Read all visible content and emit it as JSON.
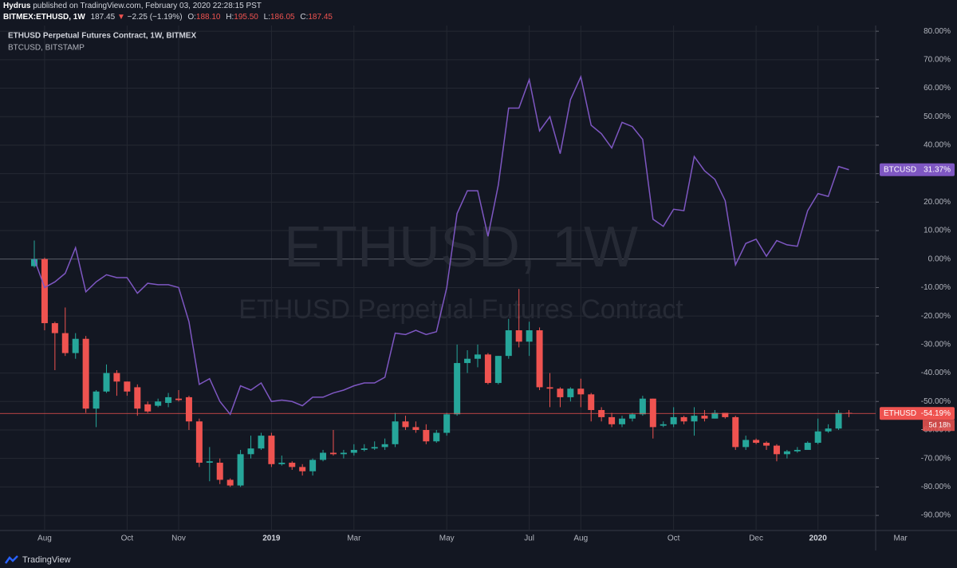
{
  "header": {
    "author": "Hydrus",
    "published": "published on TradingView.com, February 03, 2020 22:28:15 PST",
    "symbol": "BITMEX:ETHUSD, 1W",
    "last": "187.45",
    "arrow": "▼",
    "change": "−2.25 (−1.19%)",
    "ohlc": [
      {
        "key": "O:",
        "value": "188.10"
      },
      {
        "key": "H:",
        "value": "195.50"
      },
      {
        "key": "L:",
        "value": "186.05"
      },
      {
        "key": "C:",
        "value": "187.45"
      }
    ]
  },
  "chart_data": {
    "type": "candlestick",
    "legend": [
      "ETHUSD Perpetual Futures Contract, 1W, BITMEX",
      "BTCUSD, BITSTAMP"
    ],
    "watermark": [
      "ETHUSD, 1W",
      "ETHUSD Perpetual Futures Contract"
    ],
    "grid": true,
    "ylim": [
      -95.3,
      82
    ],
    "yticks": [
      {
        "value": 80,
        "label": "80.00%"
      },
      {
        "value": 70,
        "label": "70.00%"
      },
      {
        "value": 60,
        "label": "60.00%"
      },
      {
        "value": 50,
        "label": "50.00%"
      },
      {
        "value": 40,
        "label": "40.00%"
      },
      {
        "value": 30,
        "label": "30.00%"
      },
      {
        "value": 20,
        "label": "20.00%"
      },
      {
        "value": 10,
        "label": "10.00%"
      },
      {
        "value": 0,
        "label": "0.00%"
      },
      {
        "value": -10,
        "label": "-10.00%"
      },
      {
        "value": -20,
        "label": "-20.00%"
      },
      {
        "value": -30,
        "label": "-30.00%"
      },
      {
        "value": -40,
        "label": "-40.00%"
      },
      {
        "value": -50,
        "label": "-50.00%"
      },
      {
        "value": -60,
        "label": "-60.00%"
      },
      {
        "value": -70,
        "label": "-70.00%"
      },
      {
        "value": -80,
        "label": "-80.00%"
      },
      {
        "value": -90,
        "label": "-90.00%"
      }
    ],
    "categories": [
      null,
      "Aug",
      null,
      null,
      null,
      null,
      null,
      null,
      null,
      "Oct",
      null,
      null,
      null,
      null,
      "Nov",
      null,
      null,
      null,
      null,
      null,
      null,
      null,
      null,
      "2019",
      null,
      null,
      null,
      null,
      null,
      null,
      null,
      "Mar",
      null,
      null,
      null,
      null,
      null,
      null,
      null,
      null,
      "May",
      null,
      null,
      null,
      null,
      null,
      null,
      null,
      "Jul",
      null,
      null,
      null,
      null,
      "Aug",
      null,
      null,
      null,
      null,
      null,
      null,
      null,
      null,
      "Oct",
      null,
      null,
      null,
      null,
      null,
      null,
      null,
      "Dec",
      null,
      null,
      null,
      null,
      null,
      "2020",
      null,
      null,
      null,
      null,
      null,
      null,
      null,
      "Mar"
    ],
    "series": [
      {
        "name": "ETHUSD",
        "type": "candlestick",
        "up_color": "#26a69a",
        "down_color": "#ef5350",
        "countdown": "5d 18h",
        "open": [
          -2.5,
          0,
          -22.5,
          -26,
          -33,
          -28,
          -52.5,
          -46.5,
          -40,
          -43,
          -45,
          -51,
          -51.5,
          -50.5,
          -49,
          -48.5,
          -57,
          -71.5,
          -71.5,
          -77.5,
          -79.5,
          -68.5,
          -66.5,
          -62,
          -72,
          -71.5,
          -73,
          -74.5,
          -70.5,
          -68,
          -68.5,
          -68,
          -67,
          -66.5,
          -66,
          -65,
          -57,
          -59,
          -60,
          -64,
          -61,
          -54.5,
          -36.5,
          -35,
          -33.5,
          -43.5,
          -34,
          -25,
          -29,
          -25,
          -45,
          -45.5,
          -48.5,
          -45.5,
          -47.5,
          -53,
          -55.5,
          -58,
          -56,
          -54.5,
          -49,
          -58.5,
          -58,
          -55.5,
          -57,
          -55,
          -56,
          -54,
          -55.5,
          -66,
          -63.5,
          -64.5,
          -65.5,
          -68.5,
          -67.5,
          -67,
          -64.5,
          -60.5,
          -59.5,
          -54,
          null,
          null,
          null,
          null,
          null
        ],
        "high": [
          6.5,
          0.5,
          -22,
          -17,
          -26,
          -27,
          -46,
          -37,
          -39,
          -43,
          -44,
          -50,
          -49,
          -47,
          -46,
          -48,
          -56,
          -66,
          -70,
          -77,
          -67,
          -62,
          -61,
          -61,
          -69,
          -71,
          -72,
          -70,
          -67,
          -60,
          -67,
          -65,
          -65,
          -64,
          -63,
          -54,
          -55,
          -57,
          -58,
          -60,
          -54,
          -30,
          -32,
          -30,
          -33,
          -34,
          -21,
          -10.5,
          -22,
          -24,
          -40,
          -45,
          -45,
          -42,
          -47,
          -52,
          -54,
          -55,
          -54,
          -48,
          -49,
          -57,
          -52,
          -55,
          -52,
          -53,
          -53,
          -54,
          -55,
          -62,
          -63,
          -64,
          -65,
          -67,
          -66,
          -64,
          -56,
          -58,
          -53,
          -53,
          null,
          null,
          null,
          null,
          null
        ],
        "low": [
          -3,
          -25,
          -39,
          -34,
          -35,
          -54,
          -59,
          -47,
          -48,
          -48,
          -55,
          -54,
          -52,
          -52,
          -50,
          -60,
          -73,
          -78,
          -79,
          -80,
          -80,
          -70,
          -67,
          -73,
          -72.5,
          -74,
          -76,
          -76,
          -71,
          -69,
          -70,
          -69,
          -67.5,
          -67,
          -67,
          -66,
          -60,
          -61,
          -65,
          -64.5,
          -62,
          -55,
          -40,
          -38,
          -44,
          -44,
          -35,
          -31,
          -34,
          -46,
          -52,
          -52,
          -50,
          -52,
          -57,
          -57,
          -59,
          -59,
          -57,
          -55,
          -63,
          -59,
          -59,
          -58,
          -62,
          -57,
          -56,
          -56,
          -67,
          -67,
          -65,
          -67,
          -71,
          -70,
          -68,
          -66,
          -65,
          -61,
          -60,
          -55.5,
          null,
          null,
          null,
          null,
          null
        ],
        "close": [
          0,
          -22.5,
          -26,
          -33,
          -28,
          -52.5,
          -46.5,
          -40,
          -43,
          -46.5,
          -52.5,
          -53.5,
          -50,
          -48.5,
          -49.5,
          -57,
          -71.5,
          -71,
          -77.5,
          -79.5,
          -68.5,
          -66.5,
          -62,
          -72,
          -71.5,
          -73,
          -74.5,
          -70.5,
          -68,
          -68.5,
          -68,
          -67,
          -66.5,
          -66,
          -65,
          -57,
          -59,
          -60,
          -64,
          -61,
          -54.5,
          -36.5,
          -35,
          -33.5,
          -43.5,
          -34,
          -25,
          -29,
          -25,
          -45,
          -45.5,
          -48.5,
          -45.5,
          -47.5,
          -53,
          -55.5,
          -58,
          -56,
          -54.5,
          -49,
          -59,
          -58,
          -55.5,
          -57,
          -55,
          -56,
          -54,
          -55.5,
          -66,
          -63.5,
          -64.5,
          -65.5,
          -68.5,
          -67.5,
          -67,
          -64.5,
          -60.5,
          -59.5,
          -54,
          -54.19,
          null,
          null,
          null,
          null,
          null
        ],
        "value_labels": [
          null,
          null,
          null,
          null,
          null,
          null,
          null,
          null,
          null,
          null,
          null,
          null,
          null,
          null,
          null,
          null,
          null,
          null,
          null,
          null,
          null,
          null,
          null,
          null,
          null,
          null,
          null,
          null,
          null,
          null,
          null,
          null,
          null,
          null,
          null,
          null,
          null,
          null,
          null,
          null,
          null,
          null,
          null,
          null,
          null,
          null,
          null,
          null,
          null,
          null,
          null,
          null,
          null,
          null,
          null,
          null,
          null,
          null,
          null,
          null,
          null,
          null,
          null,
          null,
          null,
          null,
          null,
          null,
          null,
          null,
          null,
          null,
          null,
          null,
          null,
          null,
          null,
          null,
          null,
          "-54.19%",
          null,
          null,
          null,
          null,
          null
        ]
      },
      {
        "name": "BTCUSD",
        "type": "line",
        "color": "#7e57c2",
        "values": [
          0,
          -10,
          -8,
          -5,
          4,
          -11.5,
          -8,
          -5.5,
          -6.5,
          -6.5,
          -12,
          -8.5,
          -9,
          -9,
          -10,
          -22,
          -44,
          -42,
          -50,
          -54.5,
          -44.5,
          -46,
          -43.5,
          -50,
          -49.5,
          -50,
          -51.5,
          -48.5,
          -48.5,
          -47,
          -46,
          -44.5,
          -43.5,
          -43.5,
          -41.5,
          -26,
          -26.5,
          -25,
          -26.5,
          -25.5,
          -10,
          16,
          24,
          24,
          8,
          26,
          53,
          53,
          63,
          45,
          50,
          37,
          56,
          64,
          47,
          44,
          39,
          48,
          46.5,
          42,
          14,
          11.5,
          17.5,
          17,
          36,
          31,
          28,
          20.5,
          -2,
          5.5,
          7,
          1,
          6.5,
          5,
          4.5,
          17,
          23,
          22,
          32.5,
          31.37,
          null,
          null,
          null,
          null,
          null
        ],
        "value_labels": [
          null,
          null,
          null,
          null,
          null,
          null,
          null,
          null,
          null,
          null,
          null,
          null,
          null,
          null,
          null,
          null,
          null,
          null,
          null,
          null,
          null,
          null,
          null,
          null,
          null,
          null,
          null,
          null,
          null,
          null,
          null,
          null,
          null,
          null,
          null,
          null,
          null,
          null,
          null,
          null,
          null,
          null,
          null,
          null,
          null,
          null,
          null,
          null,
          null,
          null,
          null,
          null,
          null,
          null,
          null,
          null,
          null,
          null,
          null,
          null,
          null,
          null,
          null,
          null,
          null,
          null,
          null,
          null,
          null,
          null,
          null,
          null,
          null,
          null,
          null,
          null,
          null,
          null,
          null,
          "31.37%",
          null,
          null,
          null,
          null,
          null
        ]
      }
    ]
  },
  "footer": {
    "brand": "TradingView"
  }
}
